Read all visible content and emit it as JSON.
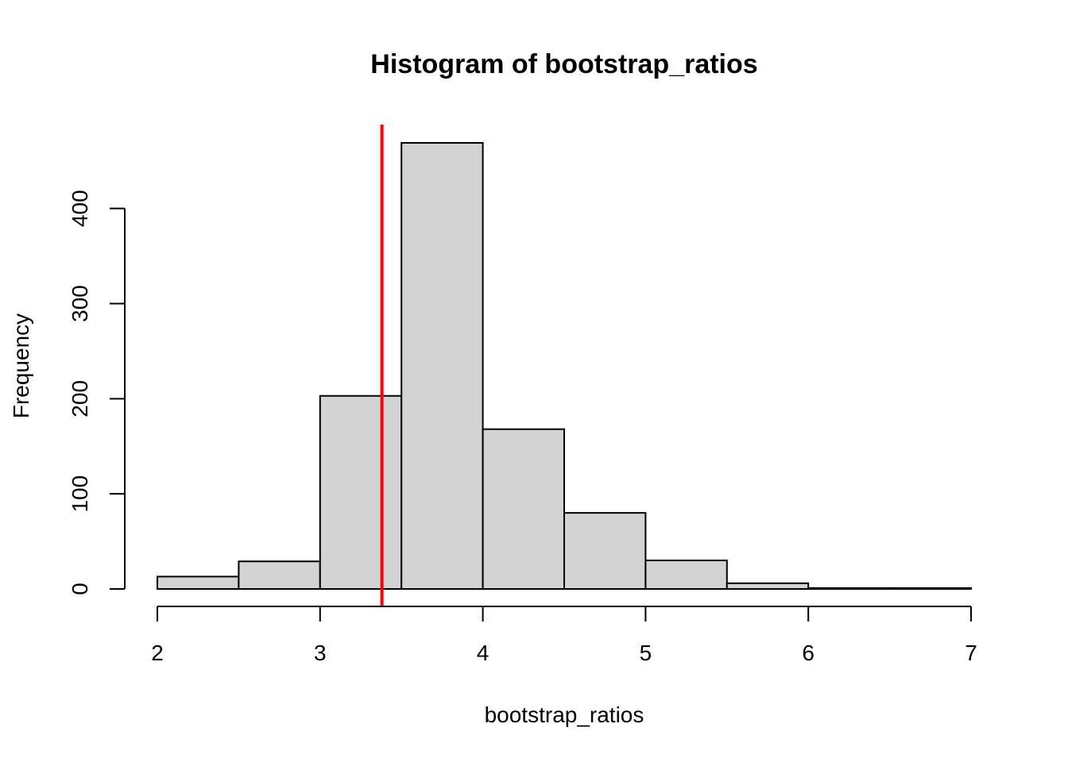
{
  "chart_data": {
    "type": "bar",
    "title": "Histogram of bootstrap_ratios",
    "xlabel": "bootstrap_ratios",
    "ylabel": "Frequency",
    "bins": [
      {
        "x0": 2.0,
        "x1": 2.5,
        "count": 13
      },
      {
        "x0": 2.5,
        "x1": 3.0,
        "count": 29
      },
      {
        "x0": 3.0,
        "x1": 3.5,
        "count": 203
      },
      {
        "x0": 3.5,
        "x1": 4.0,
        "count": 469
      },
      {
        "x0": 4.0,
        "x1": 4.5,
        "count": 168
      },
      {
        "x0": 4.5,
        "x1": 5.0,
        "count": 80
      },
      {
        "x0": 5.0,
        "x1": 5.5,
        "count": 30
      },
      {
        "x0": 5.5,
        "x1": 6.0,
        "count": 6
      },
      {
        "x0": 6.0,
        "x1": 6.5,
        "count": 1
      },
      {
        "x0": 6.5,
        "x1": 7.0,
        "count": 1
      }
    ],
    "xlim": [
      2,
      7
    ],
    "ylim": [
      0,
      469
    ],
    "xticks": [
      "2",
      "3",
      "4",
      "5",
      "6",
      "7"
    ],
    "yticks": [
      "0",
      "100",
      "200",
      "300",
      "400"
    ],
    "reference_line": {
      "x": 3.38,
      "color": "#ff0000"
    },
    "bar_fill": "#d3d3d3",
    "bar_stroke": "#000000",
    "grid": false,
    "legend": "none"
  }
}
